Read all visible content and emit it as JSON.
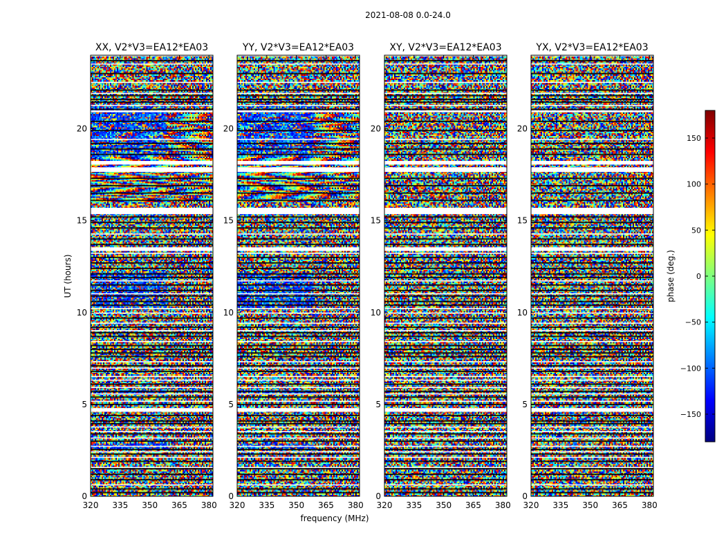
{
  "chart_data": {
    "type": "heatmap",
    "title": "2021-08-08 0.0-24.0",
    "xlabel": "frequency (MHz)",
    "ylabel": "UT (hours)",
    "xlim": [
      320,
      382
    ],
    "ylim": [
      0,
      24
    ],
    "x_ticks": [
      320,
      335,
      350,
      365,
      380
    ],
    "y_ticks": [
      0,
      5,
      10,
      15,
      20
    ],
    "panels": [
      {
        "title": "XX, V2*V3=EA12*EA03",
        "polarization": "XX"
      },
      {
        "title": "YY, V2*V3=EA12*EA03",
        "polarization": "YY"
      },
      {
        "title": "XY, V2*V3=EA12*EA03",
        "polarization": "XY"
      },
      {
        "title": "YX, V2*V3=EA12*EA03",
        "polarization": "YX"
      }
    ],
    "colorbar": {
      "label": "phase (deg.)",
      "range": [
        -180,
        180
      ],
      "ticks": [
        -150,
        -100,
        -50,
        0,
        50,
        100,
        150
      ],
      "colormap": "jet",
      "stops": [
        "#00007f",
        "#0000ff",
        "#007fff",
        "#00ffff",
        "#7fff7f",
        "#ffff00",
        "#ff7f00",
        "#ff0000",
        "#7f0000"
      ]
    },
    "flagged_hours": [
      [
        24.0,
        23.98
      ],
      [
        23.55,
        23.5
      ],
      [
        22.55,
        22.5
      ],
      [
        21.95,
        21.9
      ],
      [
        21.3,
        21.25
      ],
      [
        21.0,
        20.9
      ],
      [
        19.45,
        19.4
      ],
      [
        18.25,
        18.05
      ],
      [
        17.9,
        17.65
      ],
      [
        15.7,
        15.65
      ],
      [
        15.65,
        15.35
      ],
      [
        14.3,
        14.25
      ],
      [
        13.55,
        13.35
      ],
      [
        13.25,
        13.2
      ],
      [
        11.75,
        11.7
      ],
      [
        11.05,
        11.0
      ],
      [
        10.25,
        10.2
      ],
      [
        10.0,
        9.95
      ],
      [
        9.45,
        9.4
      ],
      [
        9.05,
        9.0
      ],
      [
        8.45,
        8.4
      ],
      [
        7.35,
        7.3
      ],
      [
        7.0,
        6.95
      ],
      [
        6.55,
        6.5
      ],
      [
        6.35,
        6.3
      ],
      [
        5.95,
        5.9
      ],
      [
        5.6,
        5.55
      ],
      [
        5.2,
        5.15
      ],
      [
        4.8,
        4.6
      ],
      [
        3.8,
        3.75
      ],
      [
        3.55,
        3.5
      ],
      [
        3.2,
        3.15
      ],
      [
        2.75,
        2.7
      ],
      [
        2.45,
        2.4
      ],
      [
        2.15,
        2.1
      ],
      [
        1.6,
        1.55
      ],
      [
        0.65,
        0.6
      ]
    ],
    "dark_line_hours": [
      23.7,
      23.0,
      22.1,
      21.8,
      21.6,
      21.45,
      21.05,
      20.4,
      19.9,
      19.2,
      18.9,
      18.6,
      17.3,
      16.9,
      16.5,
      16.1,
      15.2,
      14.9,
      14.6,
      14.0,
      13.7,
      13.0,
      12.7,
      12.4,
      12.1,
      11.9,
      11.5,
      11.2,
      10.9,
      10.6,
      10.4,
      9.7,
      9.2,
      8.9,
      8.7,
      8.2,
      8.0,
      7.8,
      7.6,
      7.1,
      6.8,
      6.1,
      5.7,
      5.4,
      5.0,
      4.4,
      4.1,
      3.95,
      3.4,
      3.0,
      2.55,
      2.3,
      1.9,
      1.5,
      1.2,
      0.9,
      0.4,
      0.2
    ]
  }
}
